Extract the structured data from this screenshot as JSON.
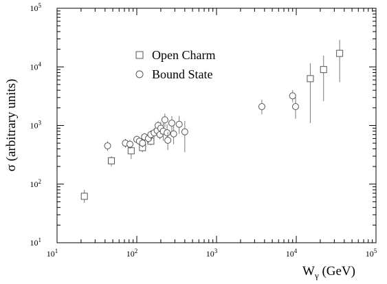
{
  "chart_data": {
    "type": "scatter",
    "title": "",
    "xlabel": "W",
    "xlabel_sub": "γ",
    "xlabel_unit": " (GeV)",
    "ylabel": "σ (arbitrary units)",
    "x_scale": "log",
    "y_scale": "log",
    "xlim": [
      10,
      100000
    ],
    "ylim": [
      10,
      100000
    ],
    "grid": false,
    "legend_position": "top-left",
    "x_ticks": [
      {
        "value": 10,
        "base": "10",
        "exp": "1"
      },
      {
        "value": 100,
        "base": "10",
        "exp": "2"
      },
      {
        "value": 1000,
        "base": "10",
        "exp": "3"
      },
      {
        "value": 10000,
        "base": "10",
        "exp": "4"
      },
      {
        "value": 100000,
        "base": "10",
        "exp": "5"
      }
    ],
    "y_ticks": [
      {
        "value": 10,
        "base": "10",
        "exp": "1"
      },
      {
        "value": 100,
        "base": "10",
        "exp": "2"
      },
      {
        "value": 1000,
        "base": "10",
        "exp": "3"
      },
      {
        "value": 10000,
        "base": "10",
        "exp": "4"
      },
      {
        "value": 100000,
        "base": "10",
        "exp": "5"
      }
    ],
    "series": [
      {
        "name": "Open Charm",
        "marker": "square",
        "points": [
          {
            "x": 22,
            "y": 62,
            "ylo": 48,
            "yhi": 80
          },
          {
            "x": 48,
            "y": 250,
            "ylo": 200,
            "yhi": 300
          },
          {
            "x": 85,
            "y": 370,
            "ylo": 270,
            "yhi": 470
          },
          {
            "x": 118,
            "y": 420,
            "ylo": 350,
            "yhi": 500
          },
          {
            "x": 150,
            "y": 540,
            "ylo": 460,
            "yhi": 640
          },
          {
            "x": 15000,
            "y": 6300,
            "ylo": 1100,
            "yhi": 11500
          },
          {
            "x": 22000,
            "y": 9000,
            "ylo": 2600,
            "yhi": 15500
          },
          {
            "x": 35000,
            "y": 17000,
            "ylo": 5500,
            "yhi": 29000
          }
        ]
      },
      {
        "name": "Bound State",
        "marker": "circle",
        "points": [
          {
            "x": 43,
            "y": 450,
            "ylo": 370,
            "yhi": 540
          },
          {
            "x": 72,
            "y": 500,
            "ylo": 420,
            "yhi": 590
          },
          {
            "x": 82,
            "y": 480,
            "ylo": 400,
            "yhi": 570
          },
          {
            "x": 100,
            "y": 580,
            "ylo": 500,
            "yhi": 670
          },
          {
            "x": 108,
            "y": 540,
            "ylo": 460,
            "yhi": 630
          },
          {
            "x": 118,
            "y": 500,
            "ylo": 420,
            "yhi": 590
          },
          {
            "x": 125,
            "y": 640,
            "ylo": 550,
            "yhi": 740
          },
          {
            "x": 140,
            "y": 600,
            "ylo": 500,
            "yhi": 710
          },
          {
            "x": 150,
            "y": 700,
            "ylo": 580,
            "yhi": 830
          },
          {
            "x": 165,
            "y": 750,
            "ylo": 620,
            "yhi": 900
          },
          {
            "x": 180,
            "y": 820,
            "ylo": 670,
            "yhi": 1000
          },
          {
            "x": 185,
            "y": 1000,
            "ylo": 820,
            "yhi": 1200
          },
          {
            "x": 195,
            "y": 700,
            "ylo": 580,
            "yhi": 850
          },
          {
            "x": 200,
            "y": 900,
            "ylo": 700,
            "yhi": 1150
          },
          {
            "x": 215,
            "y": 800,
            "ylo": 550,
            "yhi": 1100
          },
          {
            "x": 225,
            "y": 1250,
            "ylo": 950,
            "yhi": 1600
          },
          {
            "x": 240,
            "y": 750,
            "ylo": 500,
            "yhi": 1050
          },
          {
            "x": 245,
            "y": 560,
            "ylo": 380,
            "yhi": 780
          },
          {
            "x": 275,
            "y": 1100,
            "ylo": 800,
            "yhi": 1450
          },
          {
            "x": 290,
            "y": 720,
            "ylo": 480,
            "yhi": 1000
          },
          {
            "x": 340,
            "y": 1050,
            "ylo": 720,
            "yhi": 1450
          },
          {
            "x": 400,
            "y": 780,
            "ylo": 350,
            "yhi": 1200
          },
          {
            "x": 3700,
            "y": 2100,
            "ylo": 1550,
            "yhi": 2750
          },
          {
            "x": 9000,
            "y": 3200,
            "ylo": 2500,
            "yhi": 4000
          },
          {
            "x": 9800,
            "y": 2100,
            "ylo": 1300,
            "yhi": 3000
          }
        ]
      }
    ]
  }
}
